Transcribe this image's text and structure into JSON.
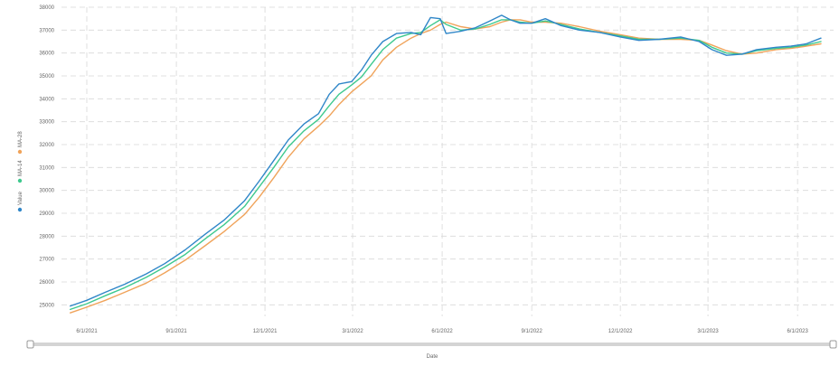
{
  "chart_data": {
    "type": "line",
    "xlabel": "Date",
    "ylabel": "",
    "ylim": [
      24500,
      38000
    ],
    "yticks": [
      25000,
      26000,
      27000,
      28000,
      29000,
      30000,
      31000,
      32000,
      33000,
      34000,
      35000,
      36000,
      37000,
      38000
    ],
    "xticks": [
      "6/1/2021",
      "9/1/2021",
      "12/1/2021",
      "3/1/2022",
      "6/1/2022",
      "9/1/2022",
      "12/1/2022",
      "3/1/2023",
      "6/1/2023"
    ],
    "xlim": [
      "2021-05-06",
      "2023-07-08"
    ],
    "grid": true,
    "legend_position": "left-vertical",
    "series": [
      {
        "name": "Value",
        "color": "#2f86c8",
        "points": [
          [
            "2021-05-15",
            24950
          ],
          [
            "2021-06-01",
            25200
          ],
          [
            "2021-06-20",
            25550
          ],
          [
            "2021-07-10",
            25900
          ],
          [
            "2021-08-01",
            26350
          ],
          [
            "2021-08-20",
            26800
          ],
          [
            "2021-09-10",
            27400
          ],
          [
            "2021-10-01",
            28100
          ],
          [
            "2021-10-20",
            28700
          ],
          [
            "2021-11-10",
            29550
          ],
          [
            "2021-11-25",
            30400
          ],
          [
            "2021-12-10",
            31300
          ],
          [
            "2021-12-25",
            32200
          ],
          [
            "2022-01-10",
            32900
          ],
          [
            "2022-01-25",
            33350
          ],
          [
            "2022-02-05",
            34200
          ],
          [
            "2022-02-15",
            34650
          ],
          [
            "2022-02-28",
            34750
          ],
          [
            "2022-03-10",
            35250
          ],
          [
            "2022-03-20",
            35900
          ],
          [
            "2022-04-01",
            36500
          ],
          [
            "2022-04-15",
            36850
          ],
          [
            "2022-04-30",
            36900
          ],
          [
            "2022-05-10",
            36800
          ],
          [
            "2022-05-20",
            37550
          ],
          [
            "2022-05-30",
            37500
          ],
          [
            "2022-06-05",
            36850
          ],
          [
            "2022-06-20",
            36950
          ],
          [
            "2022-07-05",
            37100
          ],
          [
            "2022-07-20",
            37400
          ],
          [
            "2022-08-01",
            37650
          ],
          [
            "2022-08-10",
            37450
          ],
          [
            "2022-08-20",
            37300
          ],
          [
            "2022-09-01",
            37300
          ],
          [
            "2022-09-15",
            37500
          ],
          [
            "2022-10-01",
            37200
          ],
          [
            "2022-10-20",
            37000
          ],
          [
            "2022-11-10",
            36900
          ],
          [
            "2022-12-01",
            36700
          ],
          [
            "2022-12-20",
            36550
          ],
          [
            "2023-01-10",
            36600
          ],
          [
            "2023-02-01",
            36700
          ],
          [
            "2023-02-20",
            36500
          ],
          [
            "2023-03-05",
            36150
          ],
          [
            "2023-03-20",
            35900
          ],
          [
            "2023-04-05",
            35950
          ],
          [
            "2023-04-20",
            36150
          ],
          [
            "2023-05-10",
            36250
          ],
          [
            "2023-05-25",
            36300
          ],
          [
            "2023-06-10",
            36400
          ],
          [
            "2023-06-25",
            36650
          ]
        ]
      },
      {
        "name": "MA-14",
        "color": "#3ec98e",
        "points": [
          [
            "2021-05-15",
            24800
          ],
          [
            "2021-06-01",
            25050
          ],
          [
            "2021-06-20",
            25400
          ],
          [
            "2021-07-10",
            25750
          ],
          [
            "2021-08-01",
            26200
          ],
          [
            "2021-08-20",
            26650
          ],
          [
            "2021-09-10",
            27200
          ],
          [
            "2021-10-01",
            27900
          ],
          [
            "2021-10-20",
            28500
          ],
          [
            "2021-11-10",
            29300
          ],
          [
            "2021-11-25",
            30150
          ],
          [
            "2021-12-10",
            31000
          ],
          [
            "2021-12-25",
            31900
          ],
          [
            "2022-01-10",
            32600
          ],
          [
            "2022-01-25",
            33100
          ],
          [
            "2022-02-05",
            33700
          ],
          [
            "2022-02-15",
            34200
          ],
          [
            "2022-02-28",
            34600
          ],
          [
            "2022-03-10",
            34950
          ],
          [
            "2022-03-20",
            35500
          ],
          [
            "2022-04-01",
            36150
          ],
          [
            "2022-04-15",
            36650
          ],
          [
            "2022-04-30",
            36850
          ],
          [
            "2022-05-10",
            36900
          ],
          [
            "2022-05-20",
            37200
          ],
          [
            "2022-05-30",
            37450
          ],
          [
            "2022-06-05",
            37250
          ],
          [
            "2022-06-20",
            37000
          ],
          [
            "2022-07-05",
            37050
          ],
          [
            "2022-07-20",
            37250
          ],
          [
            "2022-08-01",
            37450
          ],
          [
            "2022-08-10",
            37450
          ],
          [
            "2022-08-20",
            37350
          ],
          [
            "2022-09-01",
            37300
          ],
          [
            "2022-09-15",
            37400
          ],
          [
            "2022-10-01",
            37250
          ],
          [
            "2022-10-20",
            37050
          ],
          [
            "2022-11-10",
            36900
          ],
          [
            "2022-12-01",
            36750
          ],
          [
            "2022-12-20",
            36600
          ],
          [
            "2023-01-10",
            36600
          ],
          [
            "2023-02-01",
            36650
          ],
          [
            "2023-02-20",
            36550
          ],
          [
            "2023-03-05",
            36250
          ],
          [
            "2023-03-20",
            36000
          ],
          [
            "2023-04-05",
            35950
          ],
          [
            "2023-04-20",
            36100
          ],
          [
            "2023-05-10",
            36200
          ],
          [
            "2023-05-25",
            36250
          ],
          [
            "2023-06-10",
            36350
          ],
          [
            "2023-06-25",
            36500
          ]
        ]
      },
      {
        "name": "MA-28",
        "color": "#f0a35a",
        "points": [
          [
            "2021-05-15",
            24650
          ],
          [
            "2021-06-01",
            24900
          ],
          [
            "2021-06-20",
            25200
          ],
          [
            "2021-07-10",
            25550
          ],
          [
            "2021-08-01",
            25950
          ],
          [
            "2021-08-20",
            26400
          ],
          [
            "2021-09-10",
            26950
          ],
          [
            "2021-10-01",
            27600
          ],
          [
            "2021-10-20",
            28200
          ],
          [
            "2021-11-10",
            28950
          ],
          [
            "2021-11-25",
            29700
          ],
          [
            "2021-12-10",
            30550
          ],
          [
            "2021-12-25",
            31450
          ],
          [
            "2022-01-10",
            32250
          ],
          [
            "2022-01-25",
            32800
          ],
          [
            "2022-02-05",
            33250
          ],
          [
            "2022-02-15",
            33750
          ],
          [
            "2022-02-28",
            34300
          ],
          [
            "2022-03-10",
            34650
          ],
          [
            "2022-03-20",
            35000
          ],
          [
            "2022-04-01",
            35700
          ],
          [
            "2022-04-15",
            36250
          ],
          [
            "2022-04-30",
            36650
          ],
          [
            "2022-05-10",
            36850
          ],
          [
            "2022-05-20",
            37000
          ],
          [
            "2022-05-30",
            37250
          ],
          [
            "2022-06-05",
            37350
          ],
          [
            "2022-06-20",
            37150
          ],
          [
            "2022-07-05",
            37050
          ],
          [
            "2022-07-20",
            37150
          ],
          [
            "2022-08-01",
            37350
          ],
          [
            "2022-08-10",
            37450
          ],
          [
            "2022-08-20",
            37450
          ],
          [
            "2022-09-01",
            37350
          ],
          [
            "2022-09-15",
            37350
          ],
          [
            "2022-10-01",
            37300
          ],
          [
            "2022-10-20",
            37150
          ],
          [
            "2022-11-10",
            36950
          ],
          [
            "2022-12-01",
            36800
          ],
          [
            "2022-12-20",
            36650
          ],
          [
            "2023-01-10",
            36600
          ],
          [
            "2023-02-01",
            36600
          ],
          [
            "2023-02-20",
            36550
          ],
          [
            "2023-03-05",
            36350
          ],
          [
            "2023-03-20",
            36100
          ],
          [
            "2023-04-05",
            35950
          ],
          [
            "2023-04-20",
            36000
          ],
          [
            "2023-05-10",
            36150
          ],
          [
            "2023-05-25",
            36200
          ],
          [
            "2023-06-10",
            36300
          ],
          [
            "2023-06-25",
            36400
          ]
        ]
      }
    ]
  }
}
